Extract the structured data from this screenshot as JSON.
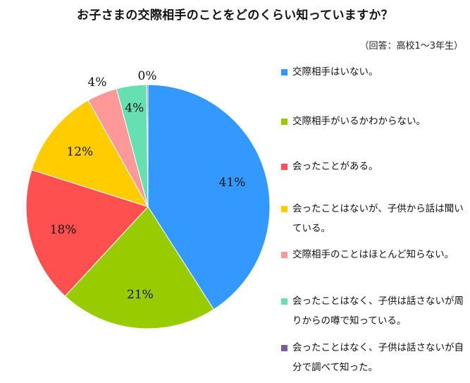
{
  "chart_data": {
    "type": "pie",
    "title": "お子さまの交際相手のことをどのくらい知っていますか？",
    "subtitle": "（回答：高校1～3年生）",
    "legend_position": "right",
    "slices": [
      {
        "label": "交際相手はいない。",
        "value": 41,
        "value_label": "41%",
        "color": "#3399ff"
      },
      {
        "label": "交際相手がいるかわからない。",
        "value": 21,
        "value_label": "21%",
        "color": "#99cc00"
      },
      {
        "label": "会ったことがある。",
        "value": 18,
        "value_label": "18%",
        "color": "#ff5050"
      },
      {
        "label": "会ったことはないが、子供から話は聞いている。",
        "value": 12,
        "value_label": "12%",
        "color": "#ffcc00"
      },
      {
        "label": "交際相手のことはほとんど知らない。",
        "value": 4,
        "value_label": "4%",
        "color": "#ff9999"
      },
      {
        "label": "会ったことはなく、子供は話さないが周りからの噂で知っている。",
        "value": 4,
        "value_label": "4%",
        "color": "#66e0b0"
      },
      {
        "label": "会ったことはなく、子供は話さないが自分で調べて知った。",
        "value": 0,
        "value_label": "0%",
        "color": "#7a5c99"
      }
    ]
  }
}
